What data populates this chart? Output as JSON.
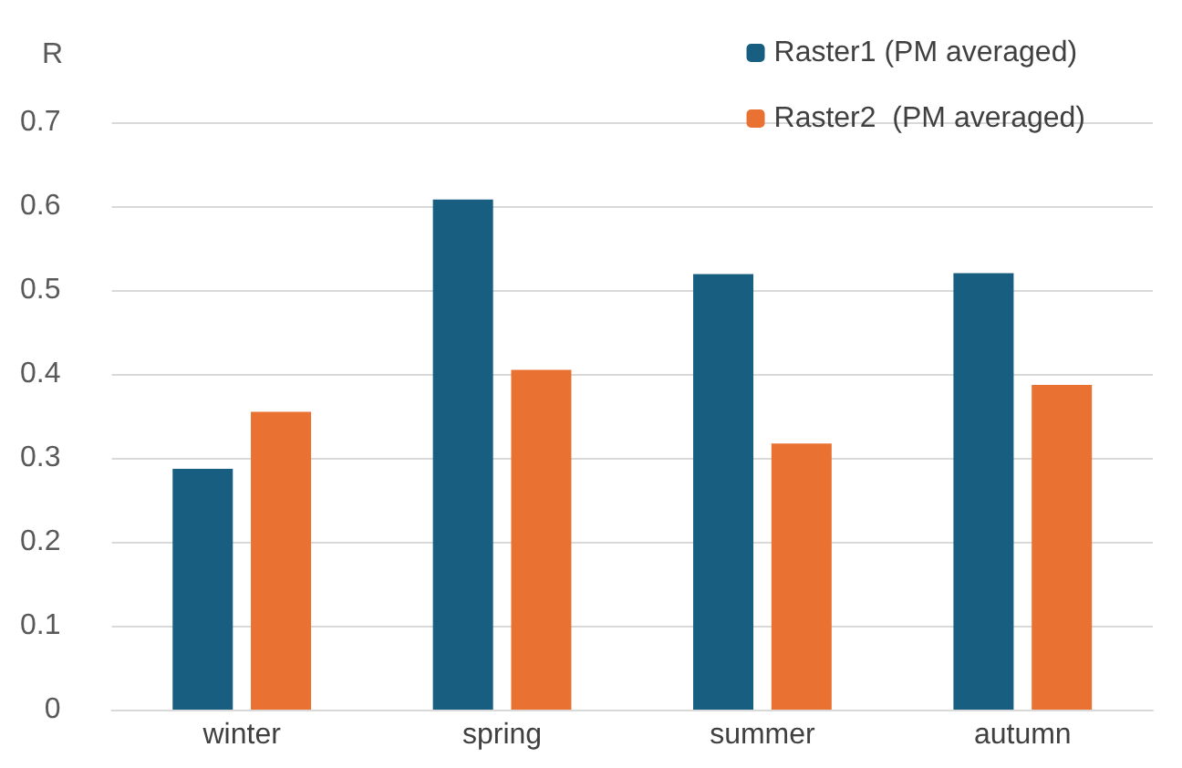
{
  "chart_data": {
    "type": "bar",
    "ylabel": "R",
    "categories": [
      "winter",
      "spring",
      "summer",
      "autumn"
    ],
    "series": [
      {
        "name": "Raster1 (PM averaged)",
        "color": "#175e81",
        "values": [
          0.287,
          0.608,
          0.519,
          0.52
        ]
      },
      {
        "name": "Raster2  (PM averaged)",
        "color": "#e97132",
        "values": [
          0.355,
          0.405,
          0.317,
          0.387
        ]
      }
    ],
    "ylim": [
      0,
      0.7
    ],
    "yticks": [
      0,
      0.1,
      0.2,
      0.3,
      0.4,
      0.5,
      0.6,
      0.7
    ],
    "grid": "y",
    "legend": "top right"
  }
}
